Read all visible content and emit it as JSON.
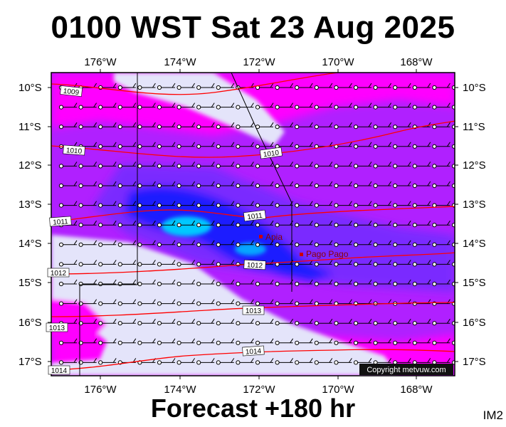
{
  "title": "0100 WST Sat 23 Aug 2025",
  "subtitle": "Forecast +180 hr",
  "image_code": "IM2",
  "copyright": "Copyright metvuw.com",
  "longitude_labels": [
    "176°W",
    "174°W",
    "172°W",
    "170°W",
    "168°W"
  ],
  "latitude_labels": [
    "10°S",
    "11°S",
    "12°S",
    "13°S",
    "14°S",
    "15°S",
    "16°S",
    "17°S"
  ],
  "isobar_labels": [
    "1009",
    "1010",
    "1010",
    "1011",
    "1011",
    "1012",
    "1012",
    "1013",
    "1013",
    "1014",
    "1014"
  ],
  "places": [
    "Apia",
    "Pago Pago"
  ],
  "colors": {
    "low_precip": "#e4e4fa",
    "magenta": "#ff00ff",
    "violet": "#b020ff",
    "purple": "#7a2cff",
    "blue": "#1a1aff",
    "cyan": "#00c8ff",
    "isobar": "#ff0000",
    "place_marker": "#cc0000"
  }
}
